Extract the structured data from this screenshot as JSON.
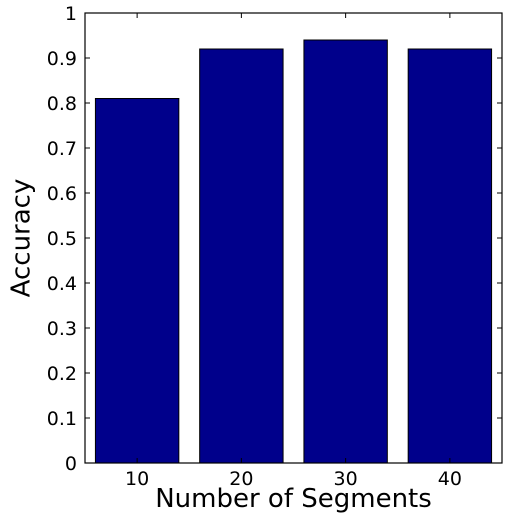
{
  "chart_data": {
    "type": "bar",
    "title": "",
    "xlabel": "Number of Segments",
    "ylabel": "Accuracy",
    "categories": [
      "10",
      "20",
      "30",
      "40"
    ],
    "values": [
      0.81,
      0.92,
      0.94,
      0.92
    ],
    "ylim": [
      0,
      1
    ],
    "yticks": [
      "0",
      "0.1",
      "0.2",
      "0.3",
      "0.4",
      "0.5",
      "0.6",
      "0.7",
      "0.8",
      "0.9",
      "1"
    ],
    "grid": false,
    "legend": "none",
    "bar_color": "#00008b",
    "bar_edge_color": "#000000"
  }
}
